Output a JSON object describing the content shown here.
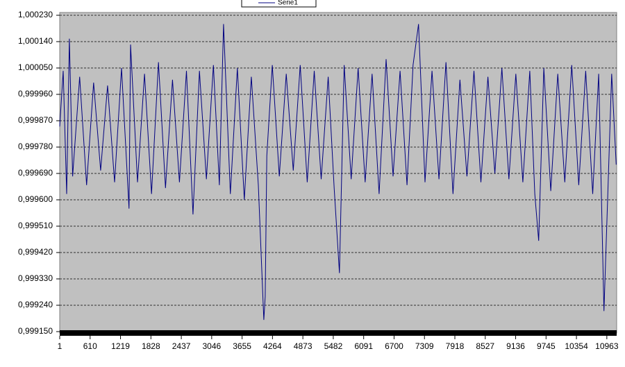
{
  "chart_data": {
    "type": "line",
    "legend_position": "top",
    "grid": true,
    "xlim": [
      1,
      11160
    ],
    "xticks": [
      1,
      610,
      1219,
      1828,
      2437,
      3046,
      3655,
      4264,
      4873,
      5482,
      6091,
      6700,
      7309,
      7918,
      8527,
      9136,
      9745,
      10354,
      10963
    ],
    "ylim": [
      0.99915,
      1.00023
    ],
    "yticks": [
      {
        "value": 0.99915,
        "label": "0,999150"
      },
      {
        "value": 0.99924,
        "label": "0,999240"
      },
      {
        "value": 0.99933,
        "label": "0,999330"
      },
      {
        "value": 0.99942,
        "label": "0,999420"
      },
      {
        "value": 0.99951,
        "label": "0,999510"
      },
      {
        "value": 0.9996,
        "label": "0,999600"
      },
      {
        "value": 0.99969,
        "label": "0,999690"
      },
      {
        "value": 0.99978,
        "label": "0,999780"
      },
      {
        "value": 0.99987,
        "label": "0,999870"
      },
      {
        "value": 0.99996,
        "label": "0,999960"
      },
      {
        "value": 1.00005,
        "label": "1,000050"
      },
      {
        "value": 1.00014,
        "label": "1,000140"
      },
      {
        "value": 1.00023,
        "label": "1,000230"
      }
    ],
    "x": [
      1,
      70,
      140,
      195,
      260,
      400,
      540,
      680,
      820,
      960,
      1100,
      1240,
      1390,
      1420,
      1560,
      1700,
      1840,
      1980,
      2120,
      2260,
      2400,
      2540,
      2671,
      2800,
      2940,
      3080,
      3200,
      3283,
      3420,
      3560,
      3700,
      3840,
      3980,
      4090,
      4118,
      4150,
      4260,
      4400,
      4540,
      4680,
      4820,
      4960,
      5100,
      5240,
      5380,
      5500,
      5606,
      5700,
      5840,
      5980,
      6120,
      6260,
      6400,
      6540,
      6680,
      6820,
      6960,
      7080,
      7190,
      7320,
      7460,
      7600,
      7740,
      7880,
      8020,
      8160,
      8300,
      8440,
      8580,
      8720,
      8860,
      9000,
      9140,
      9280,
      9420,
      9520,
      9597,
      9700,
      9840,
      9980,
      10120,
      10260,
      10400,
      10540,
      10680,
      10800,
      10905,
      10980,
      11060,
      11150
    ],
    "series": [
      {
        "name": "Serie1",
        "color": "#000080",
        "values": [
          0.99985,
          1.00004,
          0.99962,
          1.00015,
          0.99968,
          1.00002,
          0.99965,
          1.0,
          0.9997,
          0.99999,
          0.99966,
          1.00005,
          0.99957,
          1.00013,
          0.99966,
          1.00003,
          0.99962,
          1.00007,
          0.99964,
          1.00001,
          0.99966,
          1.00004,
          0.99955,
          1.00004,
          0.99967,
          1.00006,
          0.99965,
          1.0002,
          0.99962,
          1.00005,
          0.9996,
          1.00002,
          0.99965,
          0.99919,
          0.99927,
          0.99975,
          1.00006,
          0.99968,
          1.00003,
          0.9997,
          1.00006,
          0.99966,
          1.00004,
          0.99967,
          1.00002,
          0.99964,
          0.99935,
          1.00006,
          0.99967,
          1.00005,
          0.99966,
          1.00003,
          0.99962,
          1.00008,
          0.99968,
          1.00004,
          0.99965,
          1.00006,
          1.0002,
          0.99966,
          1.00004,
          0.99967,
          1.00007,
          0.99962,
          1.00001,
          0.99968,
          1.00004,
          0.99966,
          1.00002,
          0.99969,
          1.00005,
          0.99967,
          1.00003,
          0.99966,
          1.00004,
          0.99962,
          0.99946,
          1.00005,
          0.99963,
          1.00003,
          0.99966,
          1.00006,
          0.99965,
          1.00004,
          0.99962,
          1.00003,
          0.99922,
          0.99961,
          1.00003,
          0.99972
        ]
      }
    ]
  }
}
